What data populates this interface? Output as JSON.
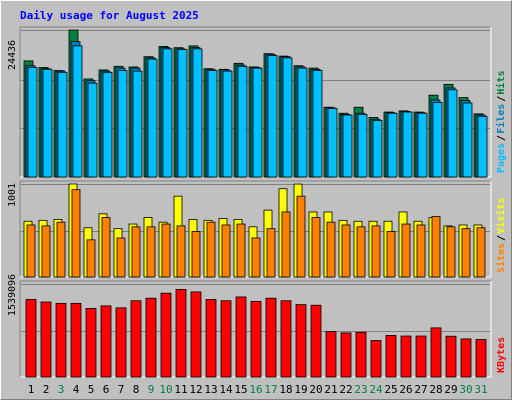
{
  "title": "Daily usage for August 2025",
  "colors": {
    "background": "#C0C0C0",
    "frame_light": "#FFFFFF",
    "frame_dark": "#808080",
    "title_text": "#0000FF",
    "hits": "#008040",
    "files": "#0080C0",
    "pages": "#00C0FF",
    "visits": "#FFFF00",
    "sites": "#FF8000",
    "kbytes": "#FF0000",
    "grid": "#808080",
    "label_text": "#000000",
    "weekend_label": "#008040"
  },
  "chart_data": [
    {
      "type": "bar",
      "panel": "hits-files-pages",
      "categories": [
        "1",
        "2",
        "3",
        "4",
        "5",
        "6",
        "7",
        "8",
        "9",
        "10",
        "11",
        "12",
        "13",
        "14",
        "15",
        "16",
        "17",
        "18",
        "19",
        "20",
        "21",
        "22",
        "23",
        "24",
        "25",
        "26",
        "27",
        "28",
        "29",
        "30",
        "31"
      ],
      "weekend_days": [
        "3",
        "9",
        "10",
        "16",
        "17",
        "23",
        "24",
        "30",
        "31"
      ],
      "ytick_label": "24436",
      "ymax": 24436,
      "ylabel_parts": [
        "Pages",
        "/",
        "Files",
        "/",
        "Hits"
      ],
      "series": [
        {
          "name": "Hits",
          "values": [
            19300,
            18200,
            17700,
            24436,
            16300,
            17800,
            18400,
            18300,
            20000,
            21700,
            21500,
            21800,
            18000,
            17900,
            18900,
            18300,
            20500,
            20100,
            18500,
            18100,
            11600,
            10600,
            11600,
            9900,
            10800,
            11000,
            10800,
            13600,
            15400,
            13200,
            10500
          ]
        },
        {
          "name": "Files",
          "values": [
            18500,
            18000,
            17600,
            22500,
            16000,
            17600,
            18100,
            18100,
            19800,
            21500,
            21300,
            21500,
            17900,
            17800,
            18600,
            18200,
            20400,
            20000,
            18300,
            17900,
            11500,
            10400,
            10600,
            9600,
            10700,
            10900,
            10700,
            12800,
            14800,
            12700,
            10300
          ]
        },
        {
          "name": "Pages",
          "values": [
            18200,
            17900,
            17400,
            21800,
            15600,
            17400,
            17700,
            17600,
            19600,
            21300,
            21200,
            21300,
            17700,
            17600,
            18400,
            18100,
            20200,
            19800,
            18100,
            17700,
            11400,
            10300,
            10400,
            9400,
            10600,
            10800,
            10600,
            12400,
            14500,
            12300,
            10100
          ]
        }
      ]
    },
    {
      "type": "bar",
      "panel": "visits-sites",
      "categories": [
        "1",
        "2",
        "3",
        "4",
        "5",
        "6",
        "7",
        "8",
        "9",
        "10",
        "11",
        "12",
        "13",
        "14",
        "15",
        "16",
        "17",
        "18",
        "19",
        "20",
        "21",
        "22",
        "23",
        "24",
        "25",
        "26",
        "27",
        "28",
        "29",
        "30",
        "31"
      ],
      "ytick_label": "1001",
      "ymax": 1001,
      "ylabel_parts": [
        "Sites",
        "/",
        "Visits"
      ],
      "series": [
        {
          "name": "Visits",
          "values": [
            600,
            610,
            620,
            1001,
            530,
            680,
            520,
            570,
            640,
            590,
            870,
            620,
            610,
            630,
            620,
            540,
            720,
            950,
            1000,
            700,
            700,
            610,
            600,
            600,
            600,
            700,
            600,
            640,
            550,
            560,
            560
          ]
        },
        {
          "name": "Sites",
          "values": [
            560,
            550,
            590,
            940,
            400,
            640,
            420,
            540,
            540,
            570,
            550,
            490,
            590,
            560,
            570,
            420,
            520,
            700,
            870,
            640,
            590,
            560,
            540,
            550,
            490,
            570,
            560,
            650,
            540,
            520,
            530
          ]
        }
      ]
    },
    {
      "type": "bar",
      "panel": "kbytes",
      "categories": [
        "1",
        "2",
        "3",
        "4",
        "5",
        "6",
        "7",
        "8",
        "9",
        "10",
        "11",
        "12",
        "13",
        "14",
        "15",
        "16",
        "17",
        "18",
        "19",
        "20",
        "21",
        "22",
        "23",
        "24",
        "25",
        "26",
        "27",
        "28",
        "29",
        "30",
        "31"
      ],
      "ytick_label": "1539096",
      "ymax": 1539096,
      "ylabel_parts": [
        "KBytes"
      ],
      "series": [
        {
          "name": "KBytes",
          "values": [
            1283000,
            1241000,
            1219000,
            1219000,
            1135000,
            1177000,
            1145000,
            1262000,
            1304000,
            1387000,
            1450000,
            1408000,
            1283000,
            1262000,
            1325000,
            1252000,
            1304000,
            1262000,
            1198000,
            1188000,
            751000,
            730000,
            740000,
            604000,
            688000,
            678000,
            678000,
            813000,
            675000,
            630000,
            620000
          ]
        }
      ]
    }
  ]
}
